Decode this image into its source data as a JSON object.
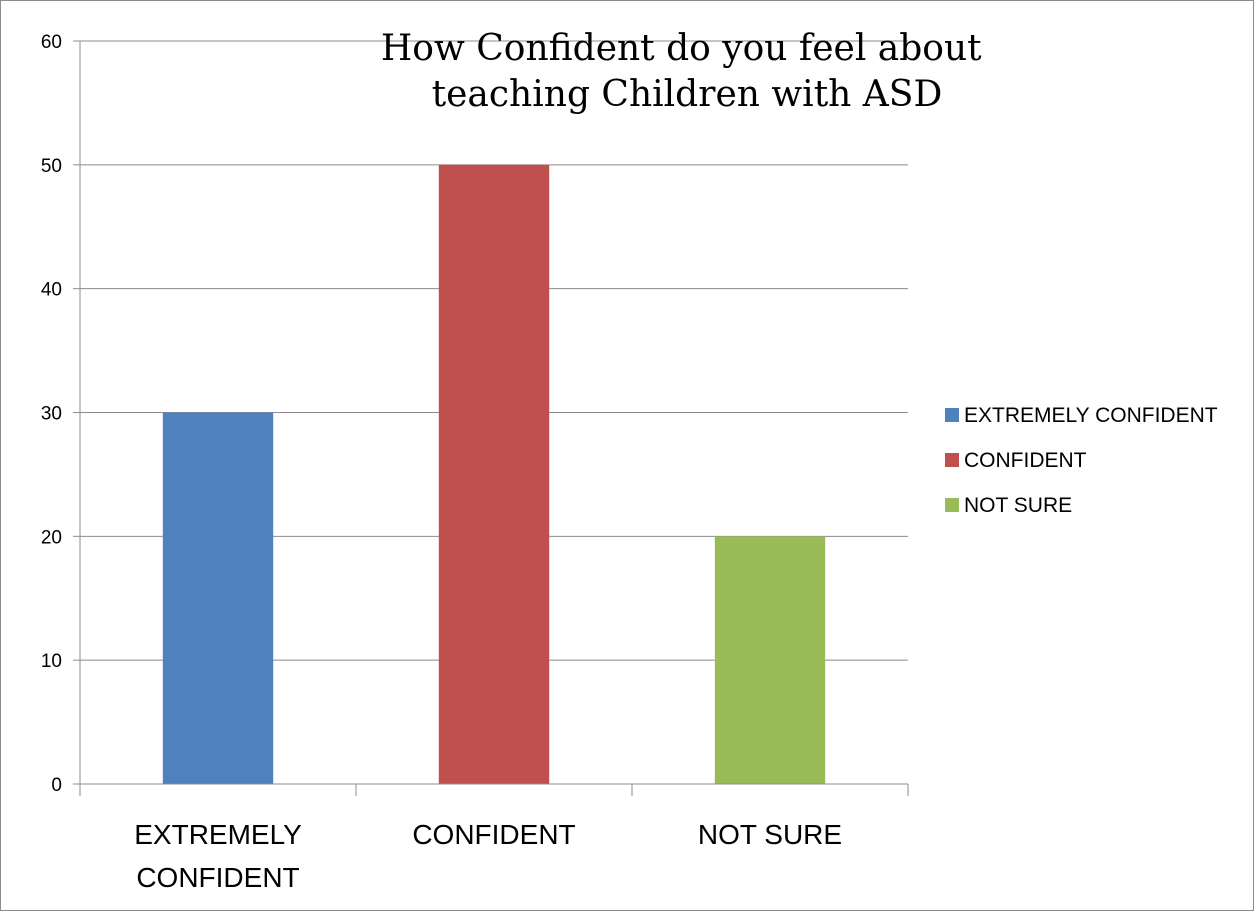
{
  "chart_data": {
    "type": "bar",
    "title_lines": [
      "How Confident do you feel about",
      "teaching Children with ASD"
    ],
    "categories": [
      "EXTREMELY CONFIDENT",
      "CONFIDENT",
      "NOT SURE"
    ],
    "category_label_lines": [
      [
        "EXTREMELY",
        "CONFIDENT"
      ],
      [
        "CONFIDENT"
      ],
      [
        "NOT SURE"
      ]
    ],
    "values": [
      30,
      50,
      20
    ],
    "colors": [
      "#4f81bd",
      "#c0504d",
      "#9bbb59"
    ],
    "ylim": [
      0,
      60
    ],
    "yticks": [
      0,
      10,
      20,
      30,
      40,
      50,
      60
    ],
    "grid": true,
    "legend": {
      "position": "right",
      "entries": [
        "EXTREMELY CONFIDENT",
        "CONFIDENT",
        "NOT SURE"
      ]
    }
  }
}
